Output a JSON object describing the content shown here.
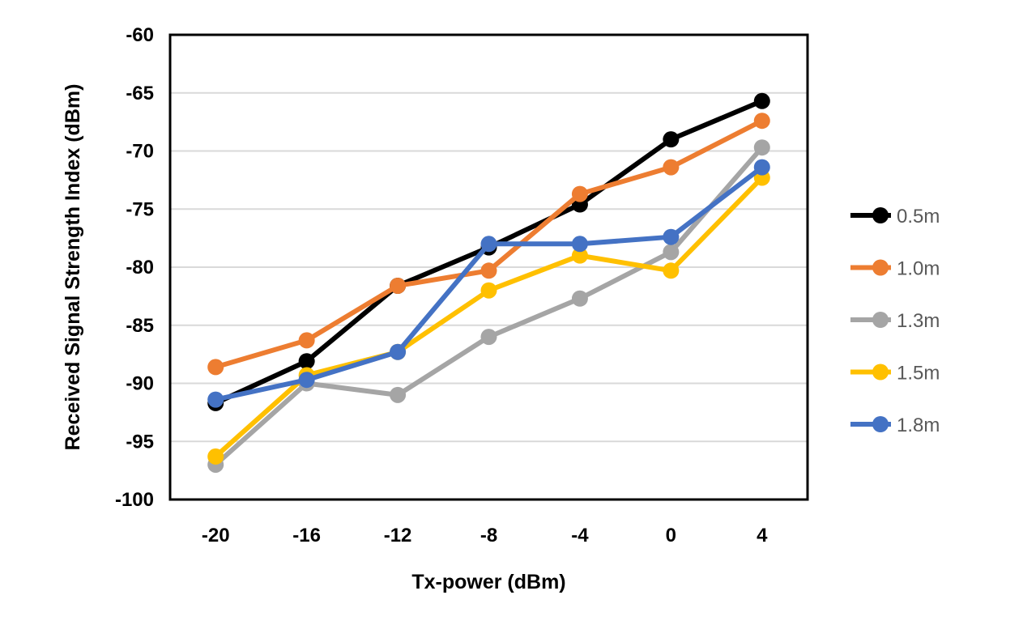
{
  "chart_data": {
    "type": "line",
    "title": "",
    "xlabel": "Tx-power (dBm)",
    "ylabel": "Received Signal Strength Index (dBm)",
    "x": [
      -20,
      -16,
      -12,
      -8,
      -4,
      0,
      4
    ],
    "x_tick_labels": [
      "-20",
      "-16",
      "-12",
      "-8",
      "-4",
      "0",
      "4"
    ],
    "ylim": [
      -100,
      -60
    ],
    "y_ticks": [
      -60,
      -65,
      -70,
      -75,
      -80,
      -85,
      -90,
      -95,
      -100
    ],
    "grid": true,
    "legend_position": "right",
    "series": [
      {
        "name": "0.5m",
        "color": "#000000",
        "values": [
          -91.7,
          -88.1,
          -81.6,
          -78.3,
          -74.6,
          -69.0,
          -65.7
        ]
      },
      {
        "name": "1.0m",
        "color": "#ED7D31",
        "values": [
          -88.6,
          -86.3,
          -81.6,
          -80.3,
          -73.7,
          -71.4,
          -67.4
        ]
      },
      {
        "name": "1.3m",
        "color": "#A5A5A5",
        "values": [
          -97.0,
          -90.0,
          -91.0,
          -86.0,
          -82.7,
          -78.7,
          -69.7
        ]
      },
      {
        "name": "1.5m",
        "color": "#FFC000",
        "values": [
          -96.3,
          -89.3,
          -87.3,
          -82.0,
          -79.0,
          -80.3,
          -72.3
        ]
      },
      {
        "name": "1.8m",
        "color": "#4472C4",
        "values": [
          -91.4,
          -89.7,
          -87.3,
          -78.0,
          -78.0,
          -77.4,
          -71.4
        ]
      }
    ]
  }
}
